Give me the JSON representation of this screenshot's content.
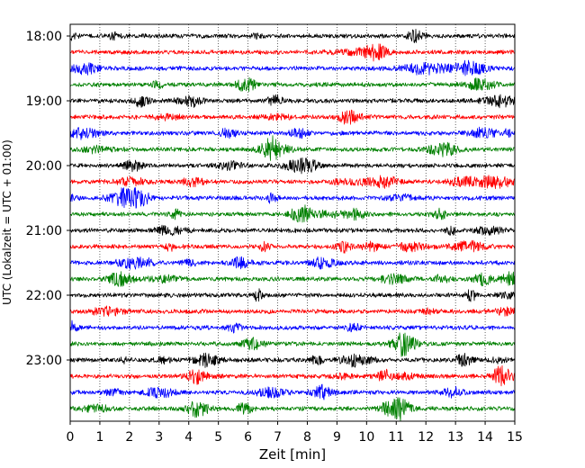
{
  "chart_data": {
    "type": "line",
    "subtype": "helicorder",
    "xlabel": "Zeit  [min]",
    "ylabel": "UTC (Lokalzeit = UTC + 01:00)",
    "xlim": [
      0,
      15
    ],
    "x_ticks": [
      "0",
      "1",
      "2",
      "3",
      "4",
      "5",
      "6",
      "7",
      "8",
      "9",
      "10",
      "11",
      "12",
      "13",
      "14",
      "15"
    ],
    "y_tick_labels": [
      "18:00",
      "19:00",
      "20:00",
      "21:00",
      "22:00",
      "23:00"
    ],
    "trace_start": "18:00",
    "trace_interval_min": 15,
    "trace_count": 24,
    "trace_colors": [
      "#000000",
      "#ff0000",
      "#0000ff",
      "#008000"
    ],
    "grid": "vertical-dotted"
  }
}
